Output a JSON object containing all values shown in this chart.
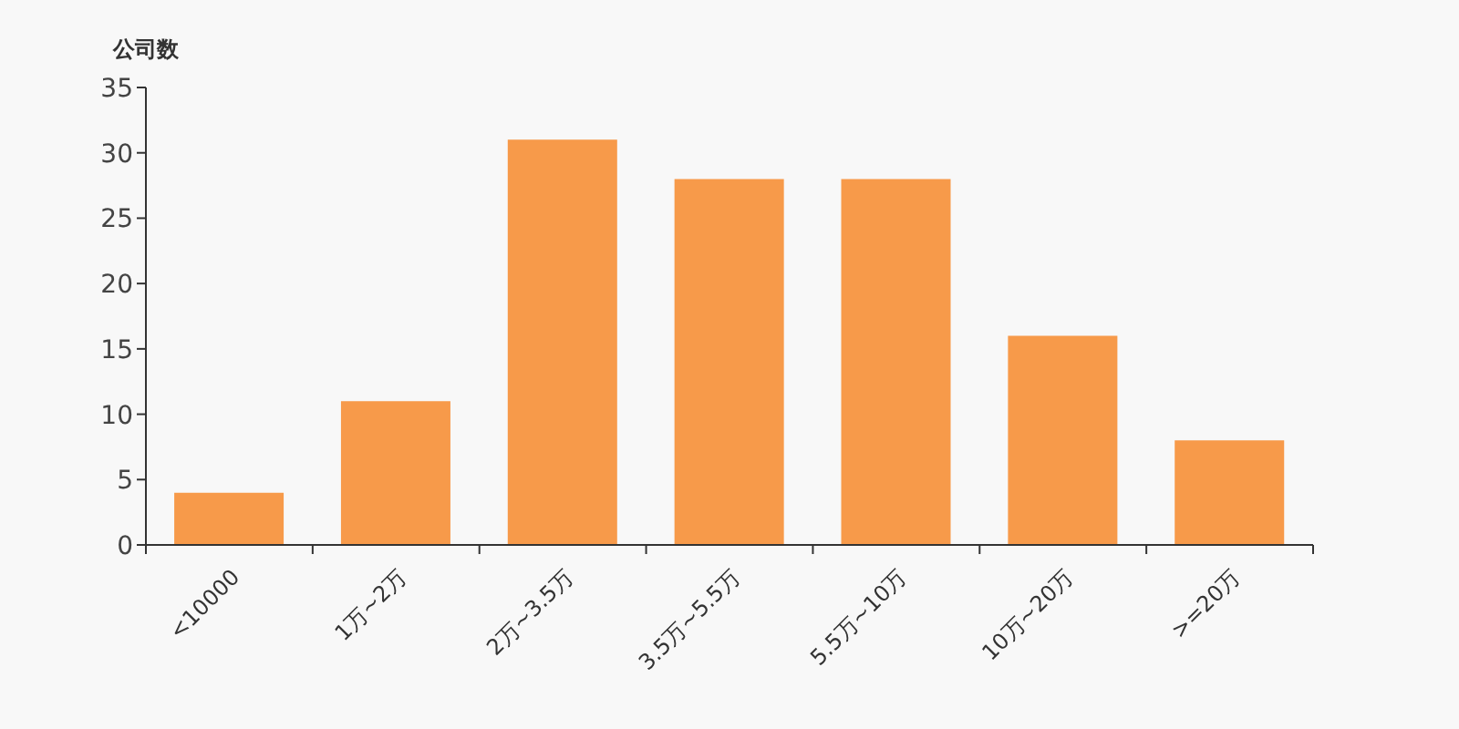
{
  "chart_data": {
    "type": "bar",
    "ylabel": "公司数",
    "categories": [
      "<10000",
      "1万~2万",
      "2万~3.5万",
      "3.5万~5.5万",
      "5.5万~10万",
      "10万~20万",
      ">=20万"
    ],
    "values": [
      4,
      11,
      31,
      28,
      28,
      16,
      8
    ],
    "color": "#f79a4a",
    "ylim": [
      0,
      35
    ],
    "yticks": [
      0,
      5,
      10,
      15,
      20,
      25,
      30,
      35
    ]
  }
}
